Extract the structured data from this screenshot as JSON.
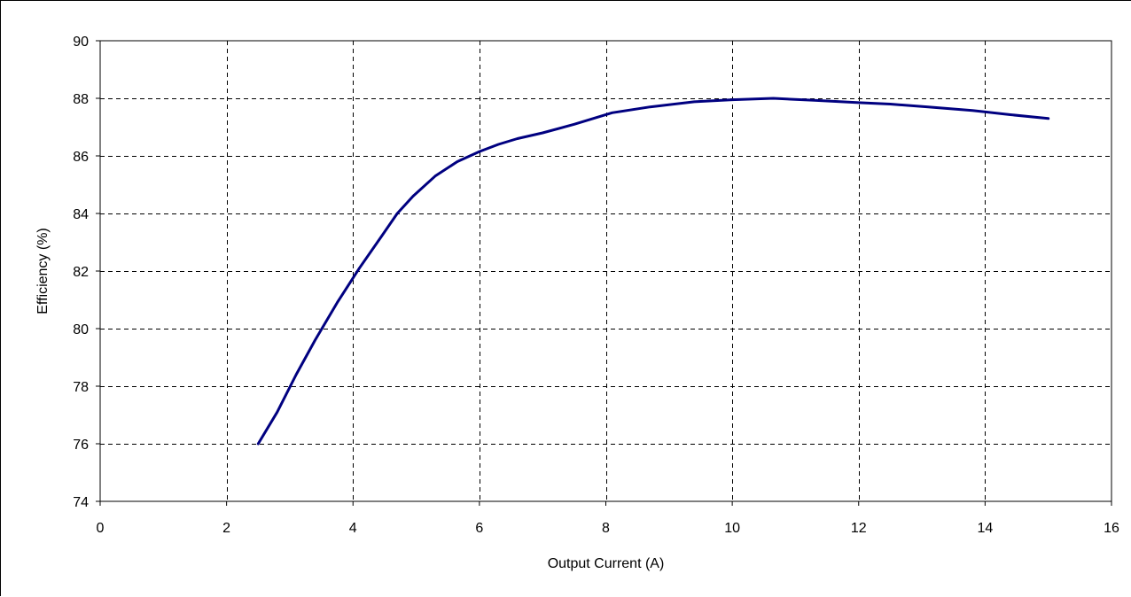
{
  "chart_data": {
    "type": "line",
    "title": "",
    "xlabel": "Output Current (A)",
    "ylabel": "Efficiency (%)",
    "xlim": [
      0,
      16
    ],
    "ylim": [
      74,
      90
    ],
    "xticks": [
      0,
      2,
      4,
      6,
      8,
      10,
      12,
      14,
      16
    ],
    "yticks": [
      74,
      76,
      78,
      80,
      82,
      84,
      86,
      88,
      90
    ],
    "grid": true,
    "legend": "none",
    "series": [
      {
        "color": "#000080",
        "x": [
          2.5,
          2.8,
          3.1,
          3.4,
          3.75,
          4.1,
          4.45,
          4.7,
          4.95,
          5.3,
          5.65,
          6.0,
          6.3,
          6.6,
          7.0,
          7.5,
          8.1,
          8.7,
          9.4,
          10.0,
          10.65,
          11.3,
          12.0,
          12.5,
          13.1,
          13.8,
          14.4,
          15.0
        ],
        "y": [
          76.0,
          77.1,
          78.4,
          79.6,
          80.9,
          82.1,
          83.2,
          84.0,
          84.6,
          85.3,
          85.8,
          86.15,
          86.4,
          86.6,
          86.8,
          87.1,
          87.5,
          87.7,
          87.88,
          87.95,
          88.0,
          87.93,
          87.85,
          87.8,
          87.7,
          87.58,
          87.43,
          87.3
        ]
      }
    ]
  }
}
